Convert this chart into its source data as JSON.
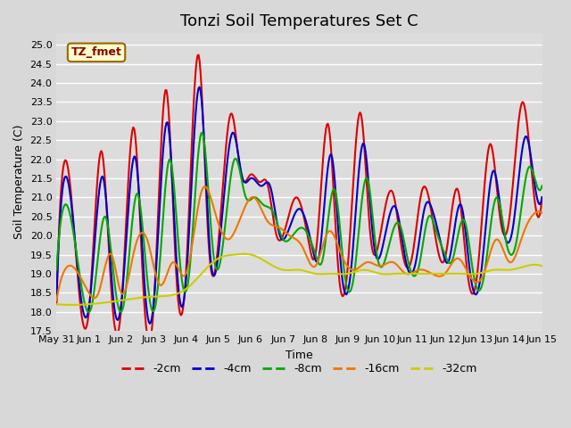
{
  "title": "Tonzi Soil Temperatures Set C",
  "xlabel": "Time",
  "ylabel": "Soil Temperature (C)",
  "ylim": [
    17.5,
    25.3
  ],
  "yticks": [
    17.5,
    18.0,
    18.5,
    19.0,
    19.5,
    20.0,
    20.5,
    21.0,
    21.5,
    22.0,
    22.5,
    23.0,
    23.5,
    24.0,
    24.5,
    25.0
  ],
  "xtick_labels": [
    "May 31",
    "Jun 1",
    "Jun 2",
    "Jun 3",
    "Jun 4",
    "Jun 5",
    "Jun 6",
    "Jun 7",
    "Jun 8",
    "Jun 9",
    "Jun 10",
    "Jun 11",
    "Jun 12",
    "Jun 13",
    "Jun 14",
    "Jun 15"
  ],
  "colors": {
    "-2cm": "#dd0000",
    "-4cm": "#0000cc",
    "-8cm": "#00aa00",
    "-16cm": "#ee7700",
    "-32cm": "#cccc00"
  },
  "annotation_text": "TZ_fmet",
  "annotation_bg": "#ffffcc",
  "annotation_border": "#996600",
  "fig_bg": "#d8d8d8",
  "plot_bg": "#dcdcdc",
  "line_width": 1.5,
  "title_fontsize": 13,
  "label_fontsize": 9,
  "tick_fontsize": 8,
  "red_t": [
    0.0,
    0.4,
    0.7,
    1.0,
    1.4,
    1.7,
    2.0,
    2.4,
    2.7,
    3.0,
    3.4,
    3.7,
    4.0,
    4.4,
    4.7,
    5.0,
    5.4,
    5.7,
    6.0,
    6.3,
    6.5,
    6.8,
    7.0,
    7.4,
    7.8,
    8.0,
    8.4,
    8.7,
    9.0,
    9.4,
    9.7,
    10.0,
    10.4,
    10.7,
    11.0,
    11.3,
    11.5,
    11.7,
    12.0,
    12.4,
    12.7,
    13.0,
    13.4,
    13.7,
    14.0,
    14.4,
    14.7,
    15.0
  ],
  "red_v": [
    18.2,
    21.5,
    18.5,
    18.0,
    22.2,
    18.5,
    18.1,
    22.8,
    18.4,
    18.1,
    23.8,
    19.0,
    19.0,
    24.7,
    19.8,
    19.8,
    23.2,
    21.6,
    21.6,
    21.4,
    21.4,
    20.0,
    20.0,
    21.0,
    19.8,
    19.5,
    22.9,
    19.2,
    19.2,
    23.2,
    20.0,
    20.0,
    21.1,
    19.5,
    19.5,
    21.2,
    21.0,
    20.0,
    19.4,
    21.2,
    19.0,
    19.0,
    22.4,
    20.5,
    20.5,
    23.5,
    21.5,
    21.0
  ],
  "blue_t": [
    0.0,
    0.45,
    0.75,
    1.0,
    1.45,
    1.75,
    2.0,
    2.45,
    2.75,
    3.0,
    3.45,
    3.75,
    4.0,
    4.45,
    4.75,
    5.0,
    5.45,
    5.75,
    6.0,
    6.35,
    6.6,
    6.9,
    7.1,
    7.5,
    7.9,
    8.1,
    8.5,
    8.8,
    9.1,
    9.5,
    9.8,
    10.1,
    10.5,
    10.8,
    11.1,
    11.4,
    11.6,
    11.9,
    12.1,
    12.5,
    12.8,
    13.1,
    13.5,
    13.8,
    14.1,
    14.5,
    14.8,
    15.0
  ],
  "blue_v": [
    18.3,
    20.9,
    18.4,
    18.1,
    21.5,
    18.4,
    18.2,
    22.0,
    18.4,
    18.2,
    22.9,
    18.8,
    18.8,
    23.8,
    19.5,
    19.5,
    22.7,
    21.5,
    21.5,
    21.3,
    21.3,
    20.0,
    20.0,
    20.7,
    19.7,
    19.4,
    22.1,
    19.1,
    19.1,
    22.4,
    19.8,
    19.8,
    20.7,
    19.3,
    19.3,
    20.8,
    20.7,
    19.7,
    19.3,
    20.8,
    18.9,
    18.9,
    21.7,
    20.2,
    20.2,
    22.6,
    21.2,
    21.0
  ],
  "green_t": [
    0.0,
    0.5,
    0.85,
    1.1,
    1.5,
    1.85,
    2.1,
    2.5,
    2.85,
    3.1,
    3.5,
    3.85,
    4.1,
    4.5,
    4.85,
    5.1,
    5.5,
    5.85,
    6.1,
    6.4,
    6.7,
    7.0,
    7.2,
    7.6,
    8.0,
    8.2,
    8.6,
    8.9,
    9.2,
    9.6,
    9.9,
    10.2,
    10.6,
    10.9,
    11.2,
    11.5,
    11.7,
    12.0,
    12.2,
    12.6,
    12.9,
    13.2,
    13.6,
    13.9,
    14.2,
    14.6,
    14.9,
    15.0
  ],
  "green_v": [
    19.1,
    20.2,
    18.3,
    18.2,
    20.5,
    18.4,
    18.3,
    21.1,
    18.5,
    18.4,
    22.0,
    19.0,
    19.0,
    22.7,
    19.5,
    19.5,
    22.0,
    21.0,
    21.0,
    20.8,
    20.6,
    19.9,
    19.9,
    20.2,
    19.5,
    19.3,
    21.2,
    19.0,
    19.0,
    21.5,
    19.5,
    19.5,
    20.3,
    19.2,
    19.2,
    20.5,
    20.2,
    19.5,
    19.3,
    20.4,
    18.9,
    18.9,
    21.0,
    19.8,
    19.8,
    21.8,
    21.2,
    21.3
  ],
  "orange_t": [
    0.0,
    0.6,
    1.0,
    1.3,
    1.7,
    2.0,
    2.4,
    2.8,
    3.2,
    3.6,
    4.0,
    4.5,
    4.9,
    5.3,
    5.7,
    6.1,
    6.5,
    6.9,
    7.2,
    7.6,
    8.0,
    8.4,
    8.8,
    9.2,
    9.6,
    10.0,
    10.4,
    10.8,
    11.2,
    11.6,
    12.0,
    12.4,
    12.8,
    13.2,
    13.6,
    14.0,
    14.4,
    14.8,
    15.0
  ],
  "orange_v": [
    18.3,
    19.1,
    18.5,
    18.5,
    19.5,
    18.5,
    19.6,
    19.9,
    18.7,
    19.3,
    19.0,
    21.2,
    20.6,
    19.9,
    20.5,
    21.0,
    20.4,
    20.2,
    20.0,
    19.7,
    19.2,
    20.1,
    19.5,
    19.1,
    19.3,
    19.2,
    19.3,
    19.0,
    19.1,
    19.0,
    19.0,
    19.4,
    18.9,
    19.0,
    19.9,
    19.3,
    20.0,
    20.6,
    20.6
  ],
  "yellow_t": [
    0.0,
    1.0,
    2.0,
    3.0,
    4.0,
    5.0,
    5.5,
    6.0,
    6.5,
    7.0,
    7.5,
    8.0,
    8.5,
    9.0,
    9.5,
    10.0,
    10.5,
    11.0,
    11.5,
    12.0,
    12.5,
    13.0,
    13.5,
    14.0,
    14.5,
    15.0
  ],
  "yellow_v": [
    18.2,
    18.2,
    18.3,
    18.4,
    18.6,
    19.4,
    19.5,
    19.5,
    19.3,
    19.1,
    19.1,
    19.0,
    19.0,
    19.0,
    19.1,
    19.0,
    19.0,
    19.0,
    19.0,
    19.0,
    19.0,
    19.0,
    19.1,
    19.1,
    19.2,
    19.2
  ]
}
